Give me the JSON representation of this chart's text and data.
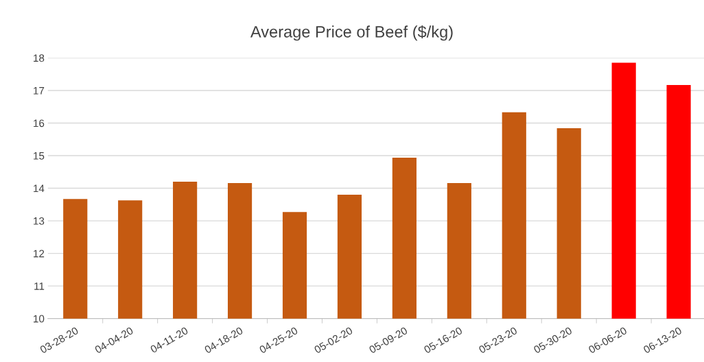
{
  "chart_data": {
    "type": "bar",
    "title": "Average Price of Beef ($/kg)",
    "categories": [
      "03-28-20",
      "04-04-20",
      "04-11-20",
      "04-18-20",
      "04-25-20",
      "05-02-20",
      "05-09-20",
      "05-16-20",
      "05-23-20",
      "05-30-20",
      "06-06-20",
      "06-13-20"
    ],
    "values": [
      13.67,
      13.63,
      14.2,
      14.16,
      13.27,
      13.8,
      14.94,
      14.16,
      16.33,
      15.84,
      17.85,
      17.17
    ],
    "colors": [
      "#c55a11",
      "#c55a11",
      "#c55a11",
      "#c55a11",
      "#c55a11",
      "#c55a11",
      "#c55a11",
      "#c55a11",
      "#c55a11",
      "#c55a11",
      "#ff0000",
      "#ff0000"
    ],
    "ylim": [
      10,
      18
    ],
    "yticks": [
      10,
      11,
      12,
      13,
      14,
      15,
      16,
      17,
      18
    ],
    "grid": "y"
  }
}
